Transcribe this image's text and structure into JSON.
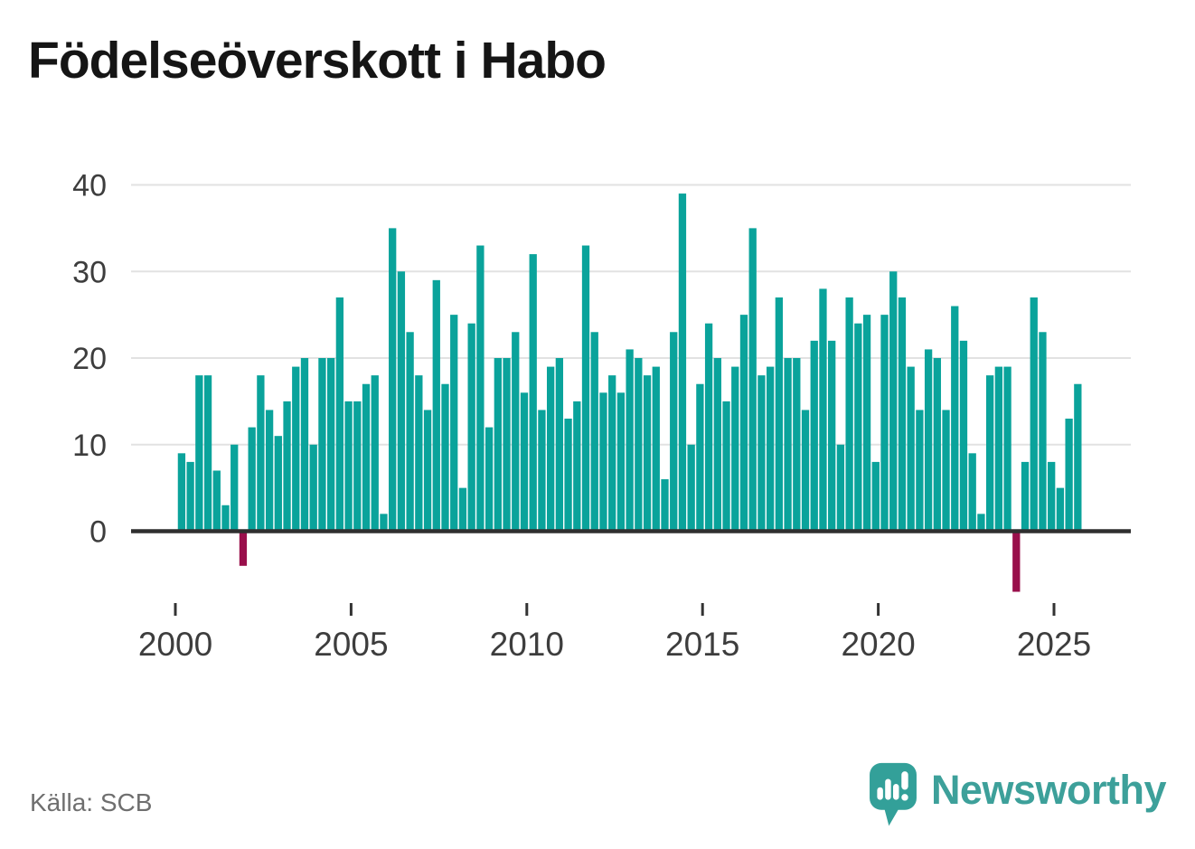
{
  "header": {
    "title": "Födelseöverskott i Habo"
  },
  "footer": {
    "source": "Källa: SCB",
    "brand": "Newsworthy"
  },
  "colors": {
    "bar_positive": "#0aa39b",
    "bar_negative": "#990f4b",
    "title_text": "#151515",
    "axis_text": "#3d3d3d",
    "grid": "#e2e2e2",
    "axis_line": "#2f2f2f",
    "tick": "#333333",
    "source_text": "#6f6f6f",
    "brand_teal": "#3da09a"
  },
  "chart_data": {
    "type": "bar",
    "title": "Födelseöverskott i Habo",
    "period": "quarterly",
    "x_start_year": 2000,
    "x_start_quarter": 1,
    "x_tick_years": [
      2000,
      2005,
      2010,
      2015,
      2020,
      2025
    ],
    "y_ticks": [
      0,
      10,
      20,
      30,
      40
    ],
    "ylim": [
      -8,
      41
    ],
    "grid": true,
    "legend_position": "none",
    "values": [
      9,
      8,
      18,
      18,
      7,
      3,
      10,
      -4,
      12,
      18,
      14,
      11,
      15,
      19,
      20,
      10,
      20,
      20,
      27,
      15,
      15,
      17,
      18,
      2,
      35,
      30,
      23,
      18,
      14,
      29,
      17,
      25,
      5,
      24,
      33,
      12,
      20,
      20,
      23,
      16,
      32,
      14,
      19,
      20,
      13,
      15,
      33,
      23,
      16,
      18,
      16,
      21,
      20,
      18,
      19,
      6,
      23,
      39,
      10,
      17,
      24,
      20,
      15,
      19,
      25,
      35,
      18,
      19,
      27,
      20,
      20,
      14,
      22,
      28,
      22,
      10,
      27,
      24,
      25,
      8,
      25,
      30,
      27,
      19,
      14,
      21,
      20,
      14,
      26,
      22,
      9,
      2,
      18,
      19,
      19,
      -7,
      8,
      27,
      23,
      8,
      5,
      13,
      17
    ]
  }
}
